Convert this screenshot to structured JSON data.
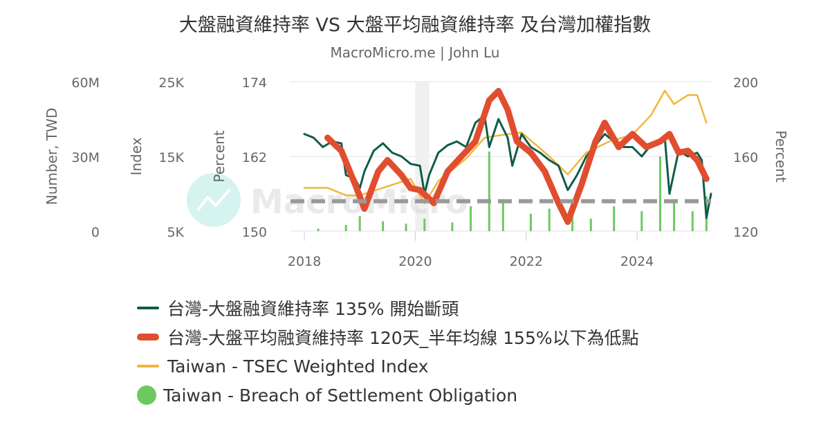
{
  "header": {
    "title": "大盤融資維持率 VS 大盤平均融資維持率 及台灣加權指數",
    "subtitle": "MacroMicro.me | John Lu"
  },
  "watermark": {
    "brand": "MacroMicro"
  },
  "colors": {
    "margin_ratio": "#0e5c4a",
    "avg_margin_ratio": "#e04e2f",
    "tsec_index": "#f0b73a",
    "breach": "#6cc95f",
    "reference_line": "#9a9a9a",
    "grid": "#e6e6e6",
    "axis_text": "#666666"
  },
  "legend": [
    {
      "label": "台灣-大盤融資維持率 135% 開始斷頭",
      "color": "#0e5c4a",
      "shape": "line"
    },
    {
      "label": "台灣-大盤平均融資維持率 120天_半年均線 155%以下為低點",
      "color": "#e04e2f",
      "shape": "thick-line"
    },
    {
      "label": "Taiwan - TSEC Weighted Index",
      "color": "#f0b73a",
      "shape": "line"
    },
    {
      "label": "Taiwan - Breach of Settlement Obligation",
      "color": "#6cc95f",
      "shape": "dot"
    }
  ],
  "chart_data": {
    "type": "line",
    "x_ticks": [
      "2018",
      "2020",
      "2022",
      "2024"
    ],
    "xlim": [
      "2017-10",
      "2025-05"
    ],
    "axes": {
      "left_outer": {
        "title": "Number, TWD",
        "ticks": [
          "60M",
          "30M",
          "0"
        ],
        "range": [
          0,
          60000000
        ]
      },
      "left_index": {
        "title": "Index",
        "ticks": [
          "25K",
          "15K",
          "5K"
        ],
        "range": [
          5000,
          25000
        ]
      },
      "left_percent": {
        "title": "Percent",
        "ticks": [
          "174",
          "162",
          "150"
        ],
        "range": [
          150,
          174
        ]
      },
      "right_percent": {
        "title": "Percent",
        "ticks": [
          "200",
          "160",
          "120"
        ],
        "range": [
          120,
          200
        ]
      }
    },
    "reference_line": {
      "axis": "right_percent",
      "value": 136,
      "style": "dashed"
    },
    "shaded_period": {
      "from": "2020-01",
      "to": "2020-04"
    },
    "series": [
      {
        "name": "台灣-大盤融資維持率 135% 開始斷頭",
        "axis": "right_percent",
        "points": [
          [
            "2018-01",
            172
          ],
          [
            "2018-03",
            170
          ],
          [
            "2018-05",
            165
          ],
          [
            "2018-07",
            168
          ],
          [
            "2018-09",
            167
          ],
          [
            "2018-10",
            150
          ],
          [
            "2018-12",
            148
          ],
          [
            "2019-01",
            143
          ],
          [
            "2019-02",
            152
          ],
          [
            "2019-04",
            163
          ],
          [
            "2019-06",
            167
          ],
          [
            "2019-08",
            162
          ],
          [
            "2019-10",
            160
          ],
          [
            "2019-12",
            156
          ],
          [
            "2020-02",
            155
          ],
          [
            "2020-03",
            140
          ],
          [
            "2020-04",
            150
          ],
          [
            "2020-06",
            162
          ],
          [
            "2020-08",
            166
          ],
          [
            "2020-10",
            168
          ],
          [
            "2020-12",
            165
          ],
          [
            "2021-02",
            178
          ],
          [
            "2021-04",
            182
          ],
          [
            "2021-05",
            165
          ],
          [
            "2021-07",
            180
          ],
          [
            "2021-09",
            170
          ],
          [
            "2021-10",
            155
          ],
          [
            "2021-12",
            172
          ],
          [
            "2022-02",
            165
          ],
          [
            "2022-04",
            162
          ],
          [
            "2022-06",
            158
          ],
          [
            "2022-08",
            155
          ],
          [
            "2022-10",
            142
          ],
          [
            "2022-12",
            150
          ],
          [
            "2023-02",
            160
          ],
          [
            "2023-04",
            166
          ],
          [
            "2023-06",
            172
          ],
          [
            "2023-08",
            168
          ],
          [
            "2023-10",
            165
          ],
          [
            "2023-12",
            165
          ],
          [
            "2024-02",
            160
          ],
          [
            "2024-04",
            166
          ],
          [
            "2024-06",
            168
          ],
          [
            "2024-07",
            170
          ],
          [
            "2024-08",
            140
          ],
          [
            "2024-10",
            163
          ],
          [
            "2024-12",
            160
          ],
          [
            "2025-02",
            162
          ],
          [
            "2025-03",
            158
          ],
          [
            "2025-04",
            127
          ],
          [
            "2025-05",
            140
          ]
        ]
      },
      {
        "name": "台灣-大盤平均融資維持率 120天_半年均線 155%以下為低點",
        "axis": "right_percent",
        "points": [
          [
            "2018-06",
            170
          ],
          [
            "2018-09",
            163
          ],
          [
            "2018-12",
            145
          ],
          [
            "2019-02",
            132
          ],
          [
            "2019-05",
            152
          ],
          [
            "2019-07",
            158
          ],
          [
            "2019-10",
            150
          ],
          [
            "2019-12",
            143
          ],
          [
            "2020-02",
            142
          ],
          [
            "2020-05",
            135
          ],
          [
            "2020-08",
            152
          ],
          [
            "2020-11",
            160
          ],
          [
            "2021-02",
            168
          ],
          [
            "2021-05",
            190
          ],
          [
            "2021-07",
            195
          ],
          [
            "2021-09",
            185
          ],
          [
            "2021-11",
            168
          ],
          [
            "2022-02",
            162
          ],
          [
            "2022-05",
            152
          ],
          [
            "2022-08",
            135
          ],
          [
            "2022-10",
            125
          ],
          [
            "2023-01",
            145
          ],
          [
            "2023-04",
            168
          ],
          [
            "2023-06",
            178
          ],
          [
            "2023-09",
            165
          ],
          [
            "2023-12",
            172
          ],
          [
            "2024-03",
            165
          ],
          [
            "2024-06",
            168
          ],
          [
            "2024-08",
            172
          ],
          [
            "2024-10",
            162
          ],
          [
            "2024-12",
            163
          ],
          [
            "2025-02",
            158
          ],
          [
            "2025-04",
            148
          ]
        ]
      },
      {
        "name": "Taiwan - TSEC Weighted Index",
        "axis": "left_index",
        "points": [
          [
            "2018-01",
            10800
          ],
          [
            "2018-06",
            10800
          ],
          [
            "2018-10",
            9800
          ],
          [
            "2019-01",
            9800
          ],
          [
            "2019-06",
            10800
          ],
          [
            "2019-12",
            12000
          ],
          [
            "2020-03",
            8700
          ],
          [
            "2020-06",
            11700
          ],
          [
            "2020-12",
            14700
          ],
          [
            "2021-04",
            17500
          ],
          [
            "2021-07",
            17800
          ],
          [
            "2021-12",
            18200
          ],
          [
            "2022-06",
            15000
          ],
          [
            "2022-10",
            12600
          ],
          [
            "2023-02",
            15500
          ],
          [
            "2023-07",
            17000
          ],
          [
            "2023-12",
            17900
          ],
          [
            "2024-04",
            20500
          ],
          [
            "2024-07",
            23800
          ],
          [
            "2024-09",
            22000
          ],
          [
            "2024-12",
            23200
          ],
          [
            "2025-02",
            23200
          ],
          [
            "2025-04",
            19500
          ]
        ]
      },
      {
        "name": "Taiwan - Breach of Settlement Obligation",
        "axis": "left_outer",
        "type": "bar",
        "points": [
          [
            "2018-04",
            1000000
          ],
          [
            "2018-10",
            2500000
          ],
          [
            "2019-01",
            6000000
          ],
          [
            "2019-06",
            4000000
          ],
          [
            "2019-11",
            3000000
          ],
          [
            "2020-03",
            5000000
          ],
          [
            "2020-09",
            3500000
          ],
          [
            "2021-01",
            10000000
          ],
          [
            "2021-05",
            32000000
          ],
          [
            "2021-08",
            12000000
          ],
          [
            "2022-02",
            7000000
          ],
          [
            "2022-06",
            9000000
          ],
          [
            "2022-11",
            6000000
          ],
          [
            "2023-03",
            5000000
          ],
          [
            "2023-08",
            10000000
          ],
          [
            "2024-02",
            8000000
          ],
          [
            "2024-06",
            30000000
          ],
          [
            "2024-09",
            12000000
          ],
          [
            "2025-01",
            8000000
          ],
          [
            "2025-04",
            14000000
          ]
        ]
      }
    ]
  }
}
